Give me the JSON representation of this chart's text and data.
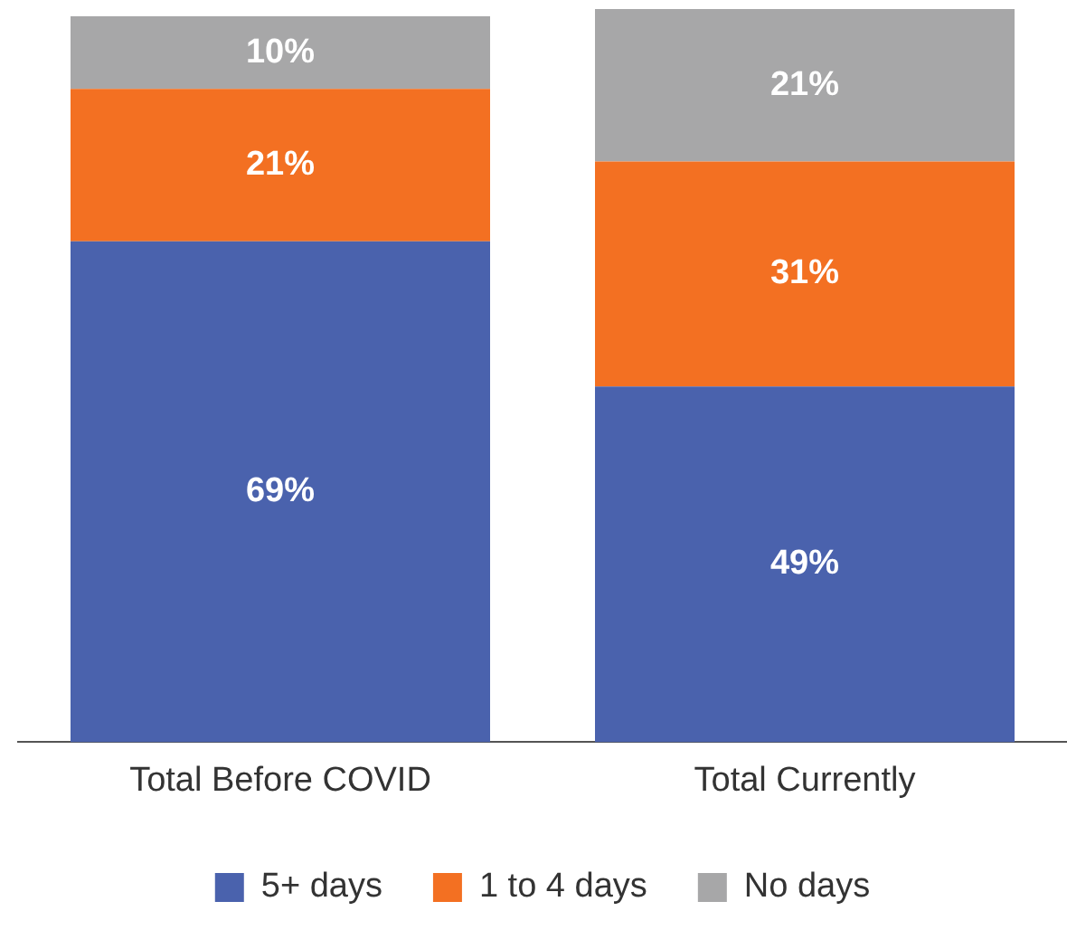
{
  "chart_data": {
    "type": "bar",
    "stacked": true,
    "categories": [
      "Total Before COVID",
      "Total Currently"
    ],
    "series": [
      {
        "name": "5+ days",
        "color": "#4a62ad",
        "values": [
          69,
          49
        ],
        "value_labels": [
          "69%",
          "49%"
        ]
      },
      {
        "name": "1 to 4 days",
        "color": "#f37022",
        "values": [
          21,
          31
        ],
        "value_labels": [
          "21%",
          "31%"
        ]
      },
      {
        "name": "No days",
        "color": "#a7a7a8",
        "values": [
          10,
          21
        ],
        "value_labels": [
          "10%",
          "21%"
        ]
      }
    ],
    "ylim": [
      0,
      101
    ],
    "tick_labels": "x",
    "grid": false,
    "legend": "bottom"
  }
}
